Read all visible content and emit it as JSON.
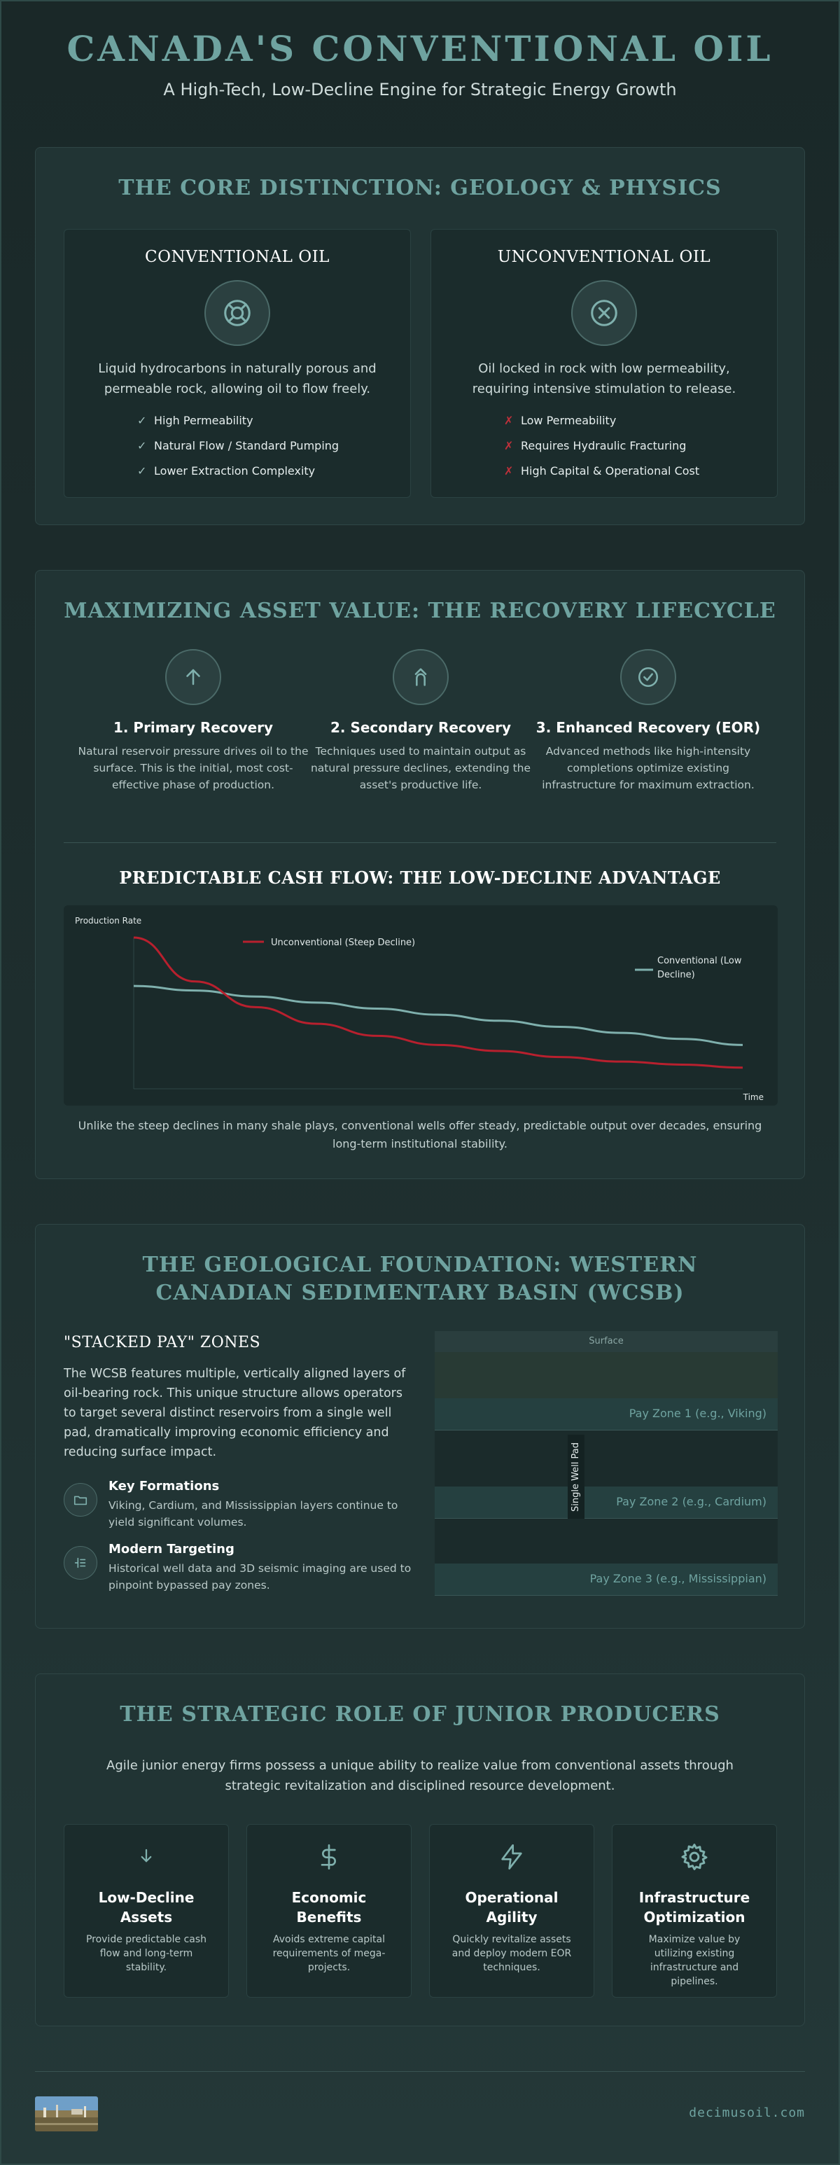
{
  "header": {
    "title": "CANADA'S CONVENTIONAL OIL",
    "subtitle": "A High-Tech, Low-Decline Engine for Strategic Energy Growth"
  },
  "distinction": {
    "title": "THE CORE DISTINCTION: GEOLOGY & PHYSICS",
    "conventional": {
      "title": "CONVENTIONAL OIL",
      "icon": "lifebuoy-icon",
      "description": "Liquid hydrocarbons in naturally porous and permeable rock, allowing oil to flow freely.",
      "points": [
        "High Permeability",
        "Natural Flow / Standard Pumping",
        "Lower Extraction Complexity"
      ],
      "mark": "✓",
      "mark_color": "#9fbfbc"
    },
    "unconventional": {
      "title": "UNCONVENTIONAL OIL",
      "icon": "x-circle-icon",
      "description": "Oil locked in rock with low permeability, requiring intensive stimulation to release.",
      "points": [
        "Low Permeability",
        "Requires Hydraulic Fracturing",
        "High Capital & Operational Cost"
      ],
      "mark": "✗",
      "mark_color": "#b8202e"
    }
  },
  "recovery": {
    "title": "MAXIMIZING ASSET VALUE: THE RECOVERY LIFECYCLE",
    "steps": [
      {
        "icon": "arrow-up-icon",
        "title": "1. Primary Recovery",
        "text": "Natural reservoir pressure drives oil to the surface. This is the initial, most cost-effective phase of production."
      },
      {
        "icon": "pump-icon",
        "title": "2. Secondary Recovery",
        "text": "Techniques used to maintain output as natural pressure declines, extending the asset's productive life."
      },
      {
        "icon": "check-circle-icon",
        "title": "3. Enhanced Recovery (EOR)",
        "text": "Advanced methods like high-intensity completions optimize existing infrastructure for maximum extraction."
      }
    ],
    "chart_title": "PREDICTABLE CASH FLOW: THE LOW-DECLINE ADVANTAGE",
    "chart_caption": "Unlike the steep declines in many shale plays, conventional wells offer steady, predictable output over decades, ensuring long-term institutional stability."
  },
  "chart_data": {
    "type": "line",
    "title": "PREDICTABLE CASH FLOW: THE LOW-DECLINE ADVANTAGE",
    "xlabel": "Time",
    "ylabel": "Production Rate",
    "x": [
      0,
      1,
      2,
      3,
      4,
      5,
      6,
      7,
      8,
      9,
      10
    ],
    "legend_placement": "inline",
    "series": [
      {
        "name": "Unconventional (Steep Decline)",
        "color": "#b8202e",
        "values": [
          100,
          71,
          54,
          43,
          35,
          29,
          25,
          21,
          18,
          16,
          14
        ]
      },
      {
        "name": "Conventional (Low Decline)",
        "color": "#7fb0ad",
        "values": [
          68,
          65,
          61,
          57,
          53,
          49,
          45,
          41,
          37,
          33,
          29
        ]
      }
    ],
    "grid": false
  },
  "wcsb": {
    "title": "THE GEOLOGICAL FOUNDATION: WESTERN CANADIAN SEDIMENTARY BASIN (WCSB)",
    "heading": "\"STACKED PAY\" ZONES",
    "body": "The WCSB features multiple, vertically aligned layers of oil-bearing rock. This unique structure allows operators to target several distinct reservoirs from a single well pad, dramatically improving economic efficiency and reducing surface impact.",
    "features": [
      {
        "icon": "folder-icon",
        "title": "Key Formations",
        "text": "Viking, Cardium, and Mississippian layers continue to yield significant volumes."
      },
      {
        "icon": "target-icon",
        "title": "Modern Targeting",
        "text": "Historical well data and 3D seismic imaging are used to pinpoint bypassed pay zones."
      }
    ],
    "diagram": {
      "surface": "Surface",
      "well": "Single Well Pad",
      "zones": [
        "Pay Zone 1 (e.g., Viking)",
        "Pay Zone 2 (e.g., Cardium)",
        "Pay Zone 3 (e.g., Mississippian)"
      ]
    }
  },
  "juniors": {
    "title": "THE STRATEGIC ROLE OF JUNIOR PRODUCERS",
    "intro": "Agile junior energy firms possess a unique ability to realize value from conventional assets through strategic revitalization and disciplined resource development.",
    "cards": [
      {
        "icon": "arrow-down-icon",
        "title": "Low-Decline Assets",
        "text": "Provide predictable cash flow and long-term stability."
      },
      {
        "icon": "dollar-icon",
        "title": "Economic Benefits",
        "text": "Avoids extreme capital requirements of mega-projects."
      },
      {
        "icon": "lightning-icon",
        "title": "Operational Agility",
        "text": "Quickly revitalize assets and deploy modern EOR techniques."
      },
      {
        "icon": "gear-icon",
        "title": "Infrastructure Optimization",
        "text": "Maximize value by utilizing existing infrastructure and pipelines."
      }
    ]
  },
  "footer": {
    "url": "decimusoil.com"
  }
}
